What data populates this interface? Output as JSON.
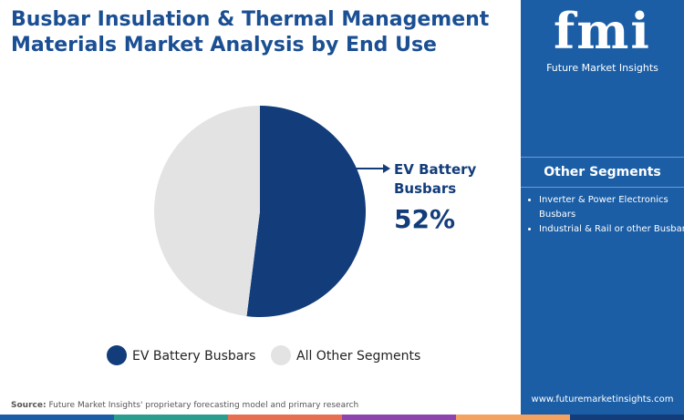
{
  "chart_data": {
    "type": "pie",
    "title": "Busbar Insulation & Thermal Management Materials Market Analysis by End Use",
    "categories": [
      "EV Battery Busbars",
      "All Other Segments"
    ],
    "values": [
      52,
      48
    ],
    "value_labels": [
      "52%",
      null
    ],
    "colors": [
      "#123c7a",
      "#e3e3e3"
    ]
  },
  "sidebar": {
    "logo": "fmi",
    "brand": "Future Market Insights",
    "heading": "Other Segments",
    "items": [
      "Inverter & Power Electronics Busbars",
      "Industrial & Rail or other Busbars"
    ],
    "website": "www.futuremarketinsights.com"
  },
  "source": {
    "label": "Source:",
    "text": "Future Market Insights' proprietary forecasting model and primary research"
  }
}
